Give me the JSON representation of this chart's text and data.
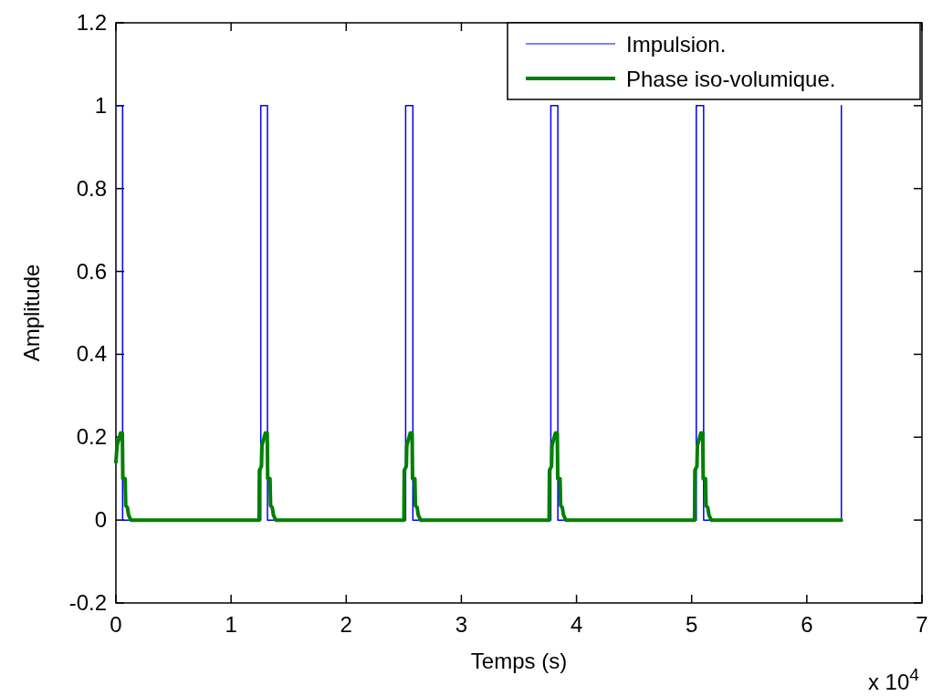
{
  "chart_data": {
    "type": "line",
    "xlabel": "Temps (s)",
    "ylabel": "Amplitude",
    "annotations": [
      "x 10$^{4}$"
    ],
    "xlim": [
      0,
      7
    ],
    "xticks": [
      0,
      1,
      2,
      3,
      4,
      5,
      6,
      7
    ],
    "ylim": [
      -0.2,
      1.2
    ],
    "yticks": [
      -0.2,
      0,
      0.2,
      0.4,
      0.6,
      0.8,
      1,
      1.2
    ],
    "legend": "top right",
    "grid": false,
    "series": [
      {
        "name": "Impulsion.",
        "color": "#0000ff",
        "x": [
          0,
          0.058,
          0.058,
          1.258,
          1.258,
          1.316,
          1.316,
          2.516,
          2.516,
          2.579,
          2.579,
          3.777,
          3.777,
          3.838,
          3.838,
          5.04,
          5.04,
          5.104,
          5.104,
          6.3,
          6.3
        ],
        "values": [
          1,
          1,
          0,
          0,
          1,
          1,
          0,
          0,
          1,
          1,
          0,
          0,
          1,
          1,
          0,
          0,
          1,
          1,
          0,
          0,
          1
        ]
      },
      {
        "name": "Phase iso-volumique.",
        "color": "#008000",
        "x": [
          0,
          0.01,
          0.04,
          0.056,
          0.06,
          0.08,
          0.085,
          0.1,
          0.11,
          0.13,
          1.243,
          1.246,
          1.264,
          1.268,
          1.298,
          1.314,
          1.318,
          1.338,
          1.343,
          1.358,
          1.368,
          1.388,
          2.501,
          2.504,
          2.522,
          2.526,
          2.556,
          2.572,
          2.576,
          2.596,
          2.601,
          2.616,
          2.626,
          2.646,
          3.762,
          3.765,
          3.783,
          3.787,
          3.817,
          3.833,
          3.837,
          3.857,
          3.862,
          3.877,
          3.887,
          3.907,
          5.025,
          5.028,
          5.046,
          5.05,
          5.08,
          5.096,
          5.1,
          5.12,
          5.125,
          5.14,
          5.15,
          5.17,
          6.3
        ],
        "values": [
          0.14,
          0.18,
          0.21,
          0.21,
          0.1,
          0.1,
          0.035,
          0.03,
          0.012,
          0,
          0,
          0.12,
          0.13,
          0.18,
          0.21,
          0.21,
          0.1,
          0.1,
          0.035,
          0.03,
          0.012,
          0,
          0,
          0.12,
          0.13,
          0.18,
          0.21,
          0.21,
          0.1,
          0.1,
          0.035,
          0.03,
          0.012,
          0,
          0,
          0.12,
          0.13,
          0.18,
          0.21,
          0.21,
          0.1,
          0.1,
          0.035,
          0.03,
          0.012,
          0,
          0,
          0.12,
          0.13,
          0.18,
          0.21,
          0.21,
          0.1,
          0.1,
          0.035,
          0.03,
          0.012,
          0,
          0
        ]
      }
    ]
  }
}
